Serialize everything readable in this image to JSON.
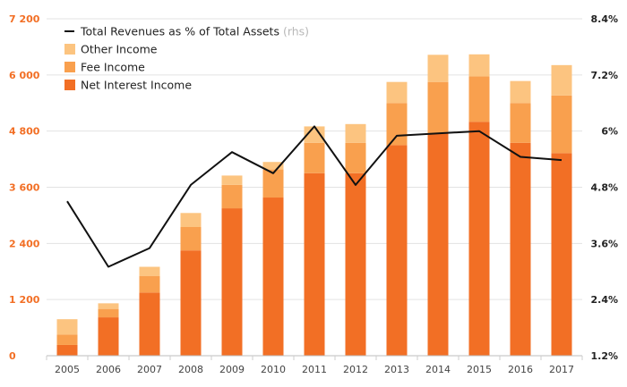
{
  "chart_data": {
    "type": "bar",
    "stacked": true,
    "categories": [
      "2005",
      "2006",
      "2007",
      "2008",
      "2009",
      "2010",
      "2011",
      "2012",
      "2013",
      "2014",
      "2015",
      "2016",
      "2017"
    ],
    "series": [
      {
        "name": "Net Interest Income",
        "color": "#f26f25",
        "values": [
          230,
          820,
          1350,
          2250,
          3150,
          3380,
          3900,
          3900,
          4500,
          4750,
          5000,
          4550,
          4330
        ]
      },
      {
        "name": "Fee Income",
        "color": "#f9a04e",
        "values": [
          220,
          180,
          350,
          500,
          500,
          600,
          650,
          650,
          900,
          1100,
          970,
          850,
          1230
        ]
      },
      {
        "name": "Other Income",
        "color": "#fcc480",
        "values": [
          330,
          120,
          200,
          300,
          200,
          160,
          350,
          400,
          450,
          580,
          470,
          470,
          650
        ]
      }
    ],
    "line_series": {
      "name": "Total Revenues as % of Total Assets",
      "name_suffix": "(rhs)",
      "color": "#111111",
      "axis": "right",
      "values": [
        4.5,
        3.1,
        3.5,
        4.85,
        5.55,
        5.1,
        6.1,
        4.85,
        5.9,
        5.95,
        6.0,
        5.45,
        5.38
      ]
    },
    "y_left": {
      "min": 0,
      "max": 7200,
      "ticks": [
        "0",
        "1 200",
        "2 400",
        "3 600",
        "4 800",
        "6 000",
        "7 200"
      ]
    },
    "y_right": {
      "min": 1.2,
      "max": 8.4,
      "ticks": [
        "1.2%",
        "2.4%",
        "3.6%",
        "4.8%",
        "6%",
        "7.2%",
        "8.4%"
      ]
    },
    "legend_order": [
      "line",
      "Other Income",
      "Fee Income",
      "Net Interest Income"
    ],
    "legend_position": "top-left",
    "grid": true
  }
}
